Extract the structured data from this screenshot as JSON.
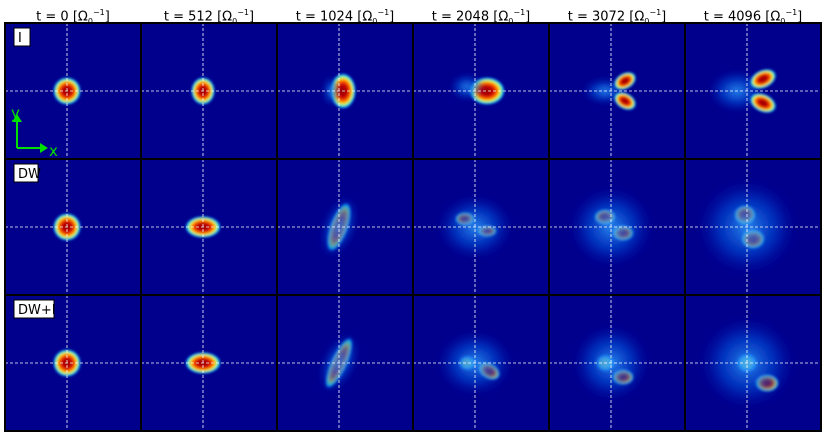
{
  "columns": [
    {
      "t": "t = 0",
      "unit": "[Ω",
      "sub": "0",
      "sup": "−1",
      "close": "]"
    },
    {
      "t": "t = 512",
      "unit": "[Ω",
      "sub": "0",
      "sup": "−1",
      "close": "]"
    },
    {
      "t": "t = 1024",
      "unit": "[Ω",
      "sub": "0",
      "sup": "−1",
      "close": "]"
    },
    {
      "t": "t = 2048",
      "unit": "[Ω",
      "sub": "0",
      "sup": "−1",
      "close": "]"
    },
    {
      "t": "t = 3072",
      "unit": "[Ω",
      "sub": "0",
      "sup": "−1",
      "close": "]"
    },
    {
      "t": "t = 4096",
      "unit": "[Ω",
      "sub": "0",
      "sup": "−1",
      "close": "]"
    }
  ],
  "rows": [
    {
      "label": "I"
    },
    {
      "label": "DW"
    },
    {
      "label": "DW+I"
    }
  ],
  "axes": {
    "y": "y",
    "x": "x"
  },
  "colors": {
    "background": "#00008c",
    "axes_arrow": "#00e000",
    "guides": "#ffffff",
    "frame": "#000000"
  }
}
